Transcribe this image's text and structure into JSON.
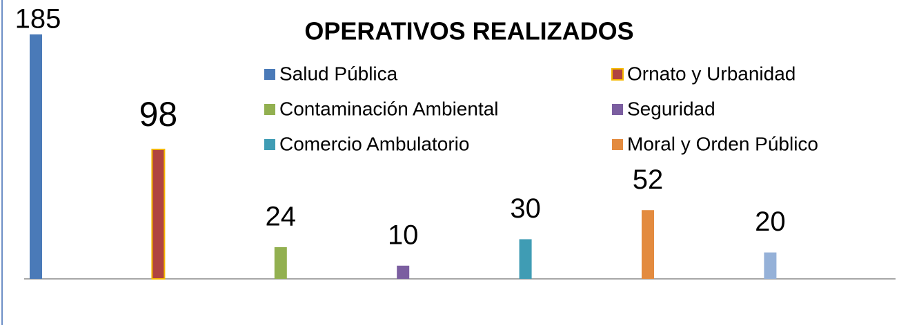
{
  "chart_data": {
    "type": "bar",
    "title": "OPERATIVOS REALIZADOS",
    "categories": [
      "Salud Pública",
      "Ornato y Urbanidad",
      "Contaminación Ambiental",
      "Seguridad",
      "Comercio Ambulatorio",
      "Moral y Orden Público",
      null
    ],
    "values": [
      185,
      98,
      24,
      10,
      30,
      52,
      20
    ],
    "colors": [
      "#4a7ab8",
      "#b04440",
      "#92b050",
      "#7b5ea0",
      "#3f9cb4",
      "#e38b3f",
      "#95b1d8"
    ],
    "outline_colors": [
      null,
      "#f5b800",
      null,
      null,
      null,
      null,
      null
    ],
    "ylim": [
      0,
      185
    ],
    "legend": "top-right"
  }
}
